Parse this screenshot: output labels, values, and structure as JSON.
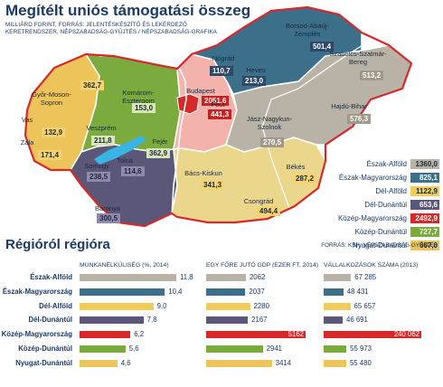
{
  "header": {
    "title": "Megítélt uniós támogatási összeg",
    "subtitle": "Milliárd forint, forrás: jelentéskészítő és lekérdező keretrendszer, Népszabadság-gyűjtés / Népszabadság-grafika"
  },
  "colors": {
    "eszak_alfold": "#b8b3a6",
    "eszak_magyarorszag": "#3c6f8a",
    "del_alfold": "#f0cc5a",
    "del_dunantul": "#5b5778",
    "kozep_magyarorszag": "#d8292a",
    "kozep_dunantul": "#7bab3e",
    "nyugat_dunantul": "#ecc45a",
    "water": "#39b4e6",
    "badge_dark": "#2e4866"
  },
  "chart_data": [
    {
      "type": "map",
      "title": "Megítélt uniós támogatási összeg",
      "unit": "Milliárd forint",
      "counties": [
        {
          "name": "Borsod-Abaúj-Zemplén",
          "value": "501,4",
          "region": "eszak_magyarorszag"
        },
        {
          "name": "Nógrád",
          "value": "110,7",
          "region": "eszak_magyarorszag"
        },
        {
          "name": "Heves",
          "value": "213,0",
          "region": "eszak_magyarorszag"
        },
        {
          "name": "Szabolcs-Szatmár-Bereg",
          "value": "513,2",
          "region": "eszak_alfold"
        },
        {
          "name": "Hajdú-Bihar",
          "value": "576,3",
          "region": "eszak_alfold"
        },
        {
          "name": "Jász-Nagykun-Szolnok",
          "value": "270,5",
          "region": "eszak_alfold"
        },
        {
          "name": "Budapest",
          "value": "2051,6",
          "region": "kozep_magyarorszag"
        },
        {
          "name": "Pest",
          "value": "441,3",
          "region": "kozep_magyarorszag"
        },
        {
          "name": "Komárom-Esztergom",
          "value": "153,0",
          "region": "kozep_dunantul"
        },
        {
          "name": "Veszprém",
          "value": "211,8",
          "region": "kozep_dunantul"
        },
        {
          "name": "Fejér",
          "value": "362,9",
          "region": "kozep_dunantul"
        },
        {
          "name": "Győr-Moson-Sopron",
          "value": "362,7",
          "region": "nyugat_dunantul"
        },
        {
          "name": "Vas",
          "value": "132,9",
          "region": "nyugat_dunantul"
        },
        {
          "name": "Zala",
          "value": "171,4",
          "region": "nyugat_dunantul"
        },
        {
          "name": "Somogy",
          "value": "238,5",
          "region": "del_dunantul"
        },
        {
          "name": "Tolna",
          "value": "114,6",
          "region": "del_dunantul"
        },
        {
          "name": "Baranya",
          "value": "300,5",
          "region": "del_dunantul"
        },
        {
          "name": "Bács-Kiskun",
          "value": "341,3",
          "region": "del_alfold"
        },
        {
          "name": "Csongrád",
          "value": "494,4",
          "region": "del_alfold"
        },
        {
          "name": "Békés",
          "value": "287,2",
          "region": "del_alfold"
        }
      ],
      "region_totals": [
        {
          "name": "Észak-Alföld",
          "value": "1360,0",
          "key": "eszak_alfold"
        },
        {
          "name": "Észak-Magyarország",
          "value": "825,1",
          "key": "eszak_magyarorszag"
        },
        {
          "name": "Dél-Alföld",
          "value": "1122,9",
          "key": "del_alfold"
        },
        {
          "name": "Dél-Dunántúl",
          "value": "653,6",
          "key": "del_dunantul"
        },
        {
          "name": "Közép-Magyarország",
          "value": "2492,9",
          "key": "kozep_magyarorszag"
        },
        {
          "name": "Közép-Dunántúl",
          "value": "727,7",
          "key": "kozep_dunantul"
        },
        {
          "name": "Nyugat-Dunántúl",
          "value": "667,0",
          "key": "nyugat_dunantul"
        }
      ]
    },
    {
      "type": "bar",
      "title": "Régióról régióra",
      "source": "Forrás: KSH, Népszabadság-gyűjtés",
      "categories": [
        "Észak-Alföld",
        "Észak-Magyarország",
        "Dél-Alföld",
        "Dél-Dunántúl",
        "Közép-Magyarország",
        "Közép-Dunántúl",
        "Nyugat-Dunántúl"
      ],
      "category_keys": [
        "eszak_alfold",
        "eszak_magyarorszag",
        "del_alfold",
        "del_dunantul",
        "kozep_magyarorszag",
        "kozep_dunantul",
        "nyugat_dunantul"
      ],
      "series": [
        {
          "name": "Munkanélküliség (%, 2014)",
          "values": [
            11.8,
            10.4,
            9.0,
            7.8,
            6.2,
            5.6,
            4.6
          ],
          "labels": [
            "11,8",
            "10,4",
            "9,0",
            "7,8",
            "6,2",
            "5,6",
            "4,6"
          ],
          "max": 11.8
        },
        {
          "name": "Egy főre jutó GDP (ezer Ft, 2014)",
          "values": [
            2062,
            2037,
            2280,
            2167,
            5162,
            2941,
            3414
          ],
          "labels": [
            "2062",
            "2037",
            "2280",
            "2167",
            "5162",
            "2941",
            "3414"
          ],
          "max": 5162
        },
        {
          "name": "Vállalkozások száma (2013)",
          "values": [
            67285,
            48431,
            65657,
            46691,
            240062,
            55973,
            55480
          ],
          "labels": [
            "67 285",
            "48 431",
            "65 657",
            "46 691",
            "240 062",
            "55 973",
            "55 480"
          ],
          "max": 240062
        }
      ]
    }
  ]
}
